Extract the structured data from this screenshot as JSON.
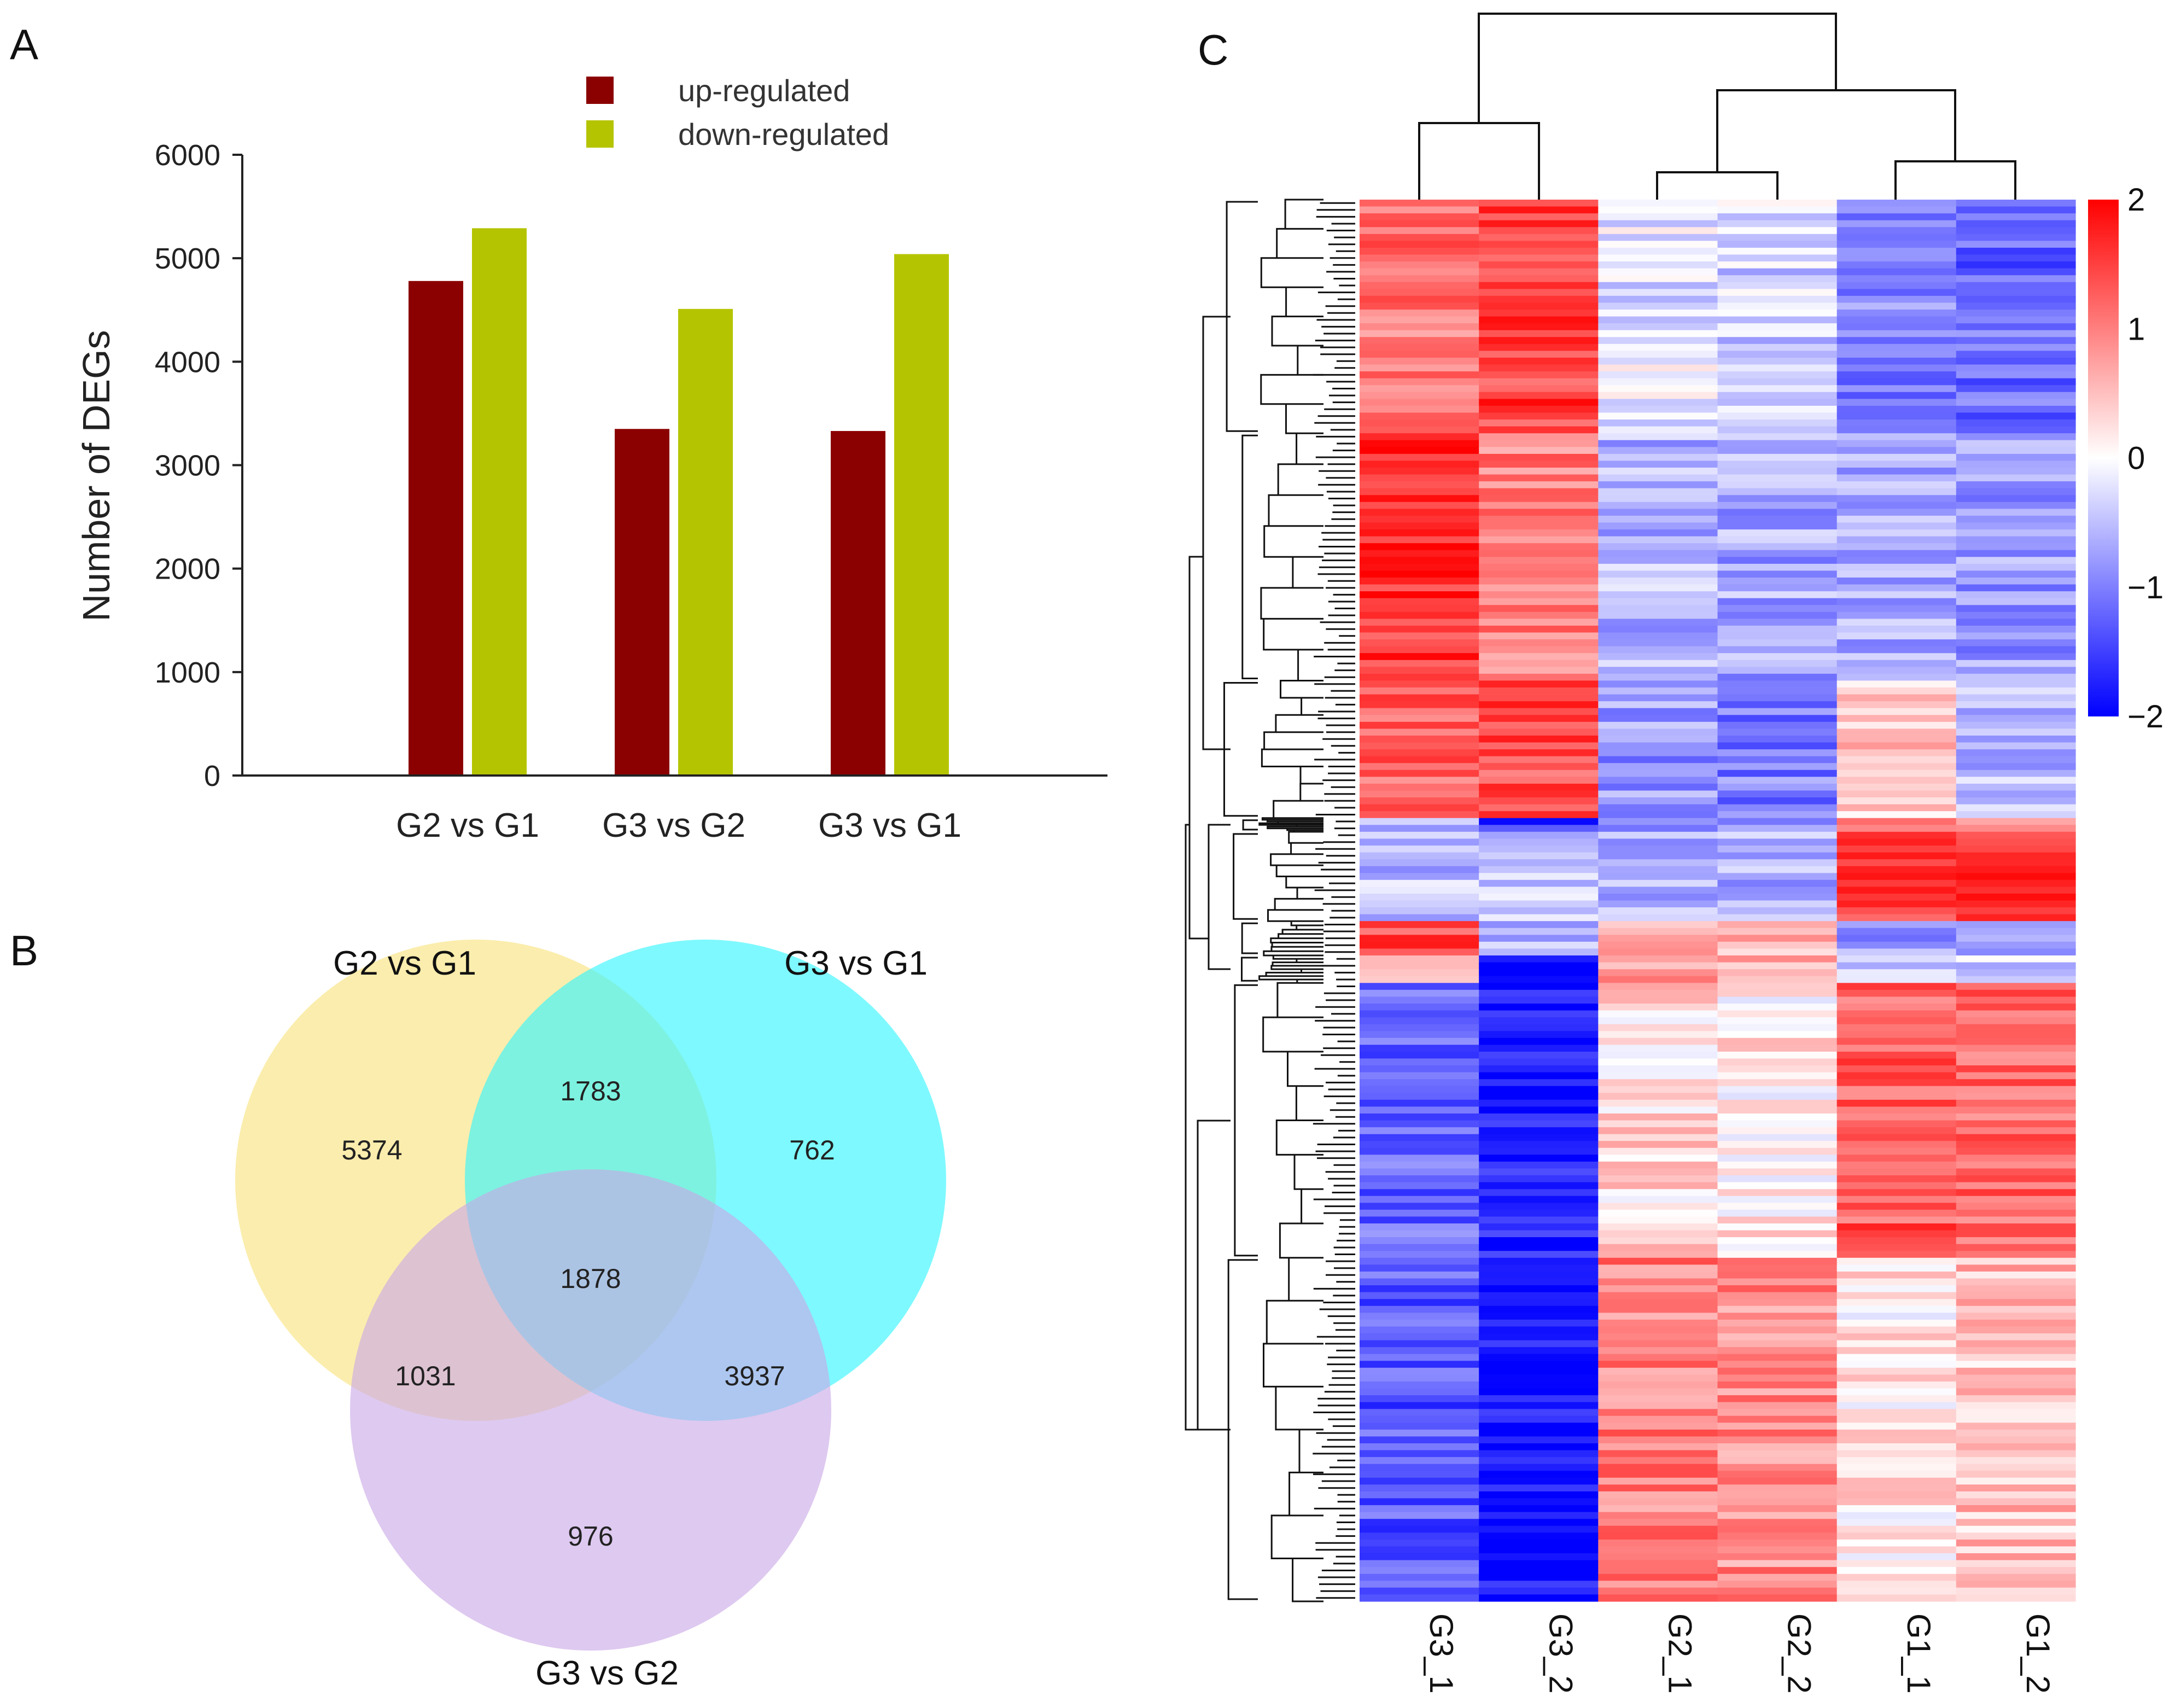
{
  "panels": {
    "a": "A",
    "b": "B",
    "c": "C"
  },
  "colors": {
    "up": "#8b0000",
    "down": "#b5c400",
    "venn_g2g1": "#f9e27a",
    "venn_g3g1": "#2ef5ff",
    "venn_g3g2": "#c9a8e6",
    "heat_low": "#0000ff",
    "heat_mid": "#ffffff",
    "heat_high": "#ff0000"
  },
  "chart_data": [
    {
      "type": "bar",
      "panel": "A",
      "categories": [
        "G2 vs G1",
        "G3 vs G2",
        "G3 vs G1"
      ],
      "series": [
        {
          "name": "up-regulated",
          "values": [
            4780,
            3350,
            3330
          ]
        },
        {
          "name": "down-regulated",
          "values": [
            5290,
            4510,
            5040
          ]
        }
      ],
      "title": "",
      "xlabel": "",
      "ylabel": "Number of DEGs",
      "ylim": [
        0,
        6000
      ],
      "yticks": [
        0,
        1000,
        2000,
        3000,
        4000,
        5000,
        6000
      ],
      "legend": "top-center",
      "grid": false
    },
    {
      "type": "venn",
      "panel": "B",
      "sets": [
        "G2 vs G1",
        "G3 vs G1",
        "G3 vs G2"
      ],
      "regions": {
        "G2 vs G1 only": 5374,
        "G3 vs G1 only": 762,
        "G3 vs G2 only": 976,
        "G2 vs G1 & G3 vs G1": 1783,
        "G2 vs G1 & G3 vs G2": 1031,
        "G3 vs G1 & G3 vs G2": 3937,
        "all three": 1878
      }
    },
    {
      "type": "heatmap",
      "panel": "C",
      "columns": [
        "G3_1",
        "G3_2",
        "G2_1",
        "G2_2",
        "G1_1",
        "G1_2"
      ],
      "colorbar": {
        "min": -2,
        "max": 2,
        "ticks": [
          2,
          1,
          0,
          -1,
          -2
        ]
      },
      "clusters": [
        {
          "rows": 34,
          "values": [
            1.1,
            1.5,
            -0.2,
            -0.35,
            -1.0,
            -1.2
          ]
        },
        {
          "rows": 36,
          "values": [
            1.6,
            1.0,
            -0.6,
            -0.7,
            -0.6,
            -0.8
          ]
        },
        {
          "rows": 20,
          "values": [
            1.2,
            1.4,
            -0.8,
            -1.0,
            0.4,
            -0.5
          ]
        },
        {
          "rows": 2,
          "values": [
            -0.6,
            -1.6,
            -0.9,
            -1.0,
            0.8,
            0.6
          ]
        },
        {
          "rows": 13,
          "values": [
            -0.5,
            -0.3,
            -0.7,
            -0.7,
            1.4,
            1.5
          ]
        },
        {
          "rows": 5,
          "values": [
            1.4,
            -0.5,
            0.6,
            0.6,
            -0.8,
            -0.7
          ]
        },
        {
          "rows": 4,
          "values": [
            0.2,
            -2.0,
            0.7,
            0.7,
            -0.3,
            -0.4
          ]
        },
        {
          "rows": 40,
          "values": [
            -1.2,
            -1.8,
            0.3,
            0.2,
            1.3,
            1.2
          ]
        },
        {
          "rows": 50,
          "values": [
            -1.3,
            -1.9,
            1.0,
            0.9,
            0.2,
            0.5
          ]
        }
      ]
    }
  ]
}
